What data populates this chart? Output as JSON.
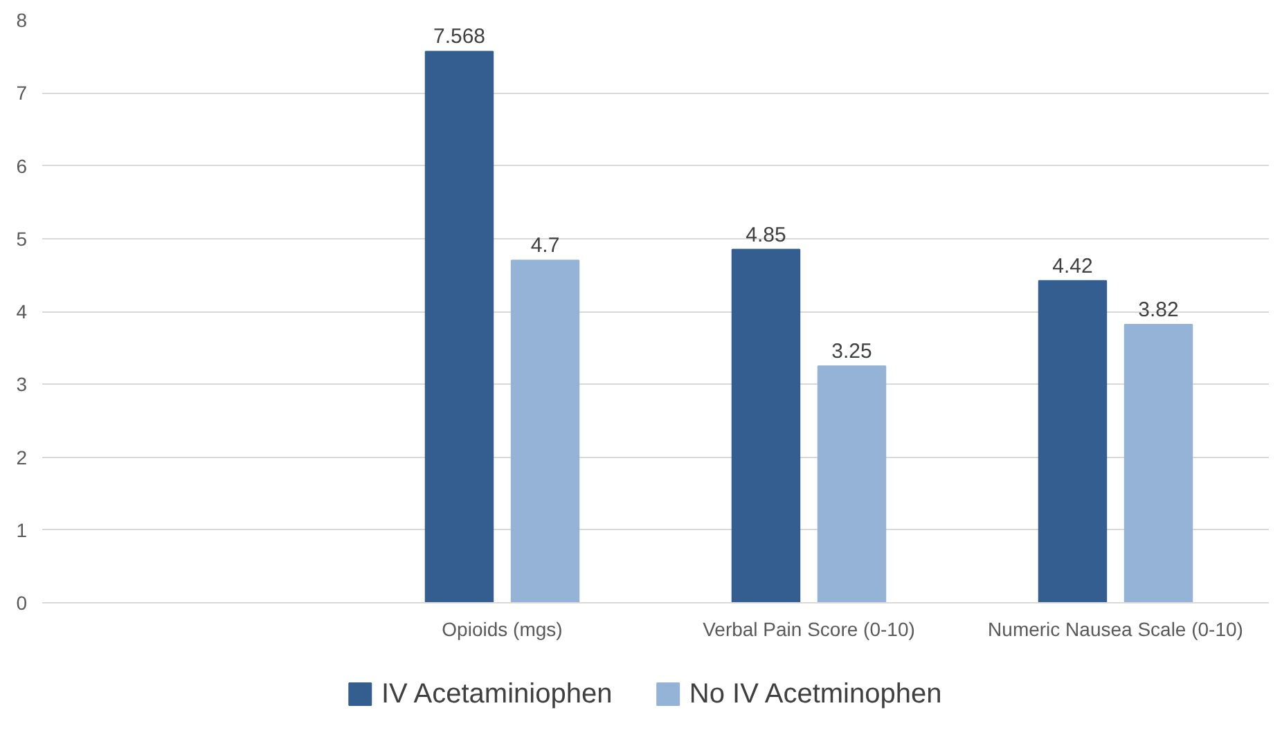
{
  "chart_data": {
    "type": "bar",
    "categories": [
      null,
      "Opioids (mgs)",
      "Verbal Pain Score (0-10)",
      "Numeric Nausea Scale (0-10)"
    ],
    "series": [
      {
        "name": "IV Acetaminiophen",
        "color": "#335e8f",
        "values": [
          null,
          7.568,
          4.85,
          4.42
        ]
      },
      {
        "name": "No IV Acetminophen",
        "color": "#95b3d7",
        "values": [
          null,
          4.7,
          3.25,
          3.82
        ]
      }
    ],
    "ylim": [
      0,
      8
    ],
    "yticks": [
      0,
      1,
      2,
      3,
      4,
      5,
      6,
      7,
      8
    ],
    "grid": "y",
    "legend": "bottom",
    "data_labels": true
  }
}
